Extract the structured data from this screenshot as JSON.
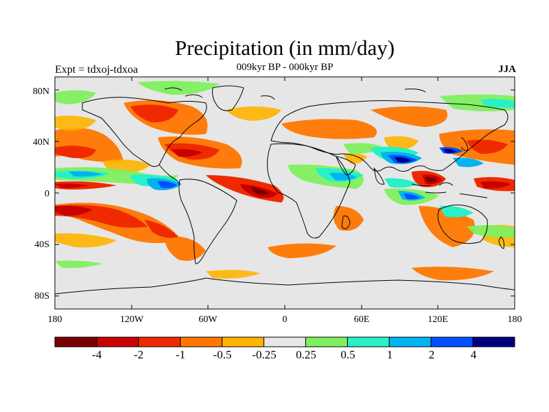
{
  "title": "Precipitation (in mm/day)",
  "subtitle": "009kyr BP - 000kyr BP",
  "left_label": "Expt = tdxoj-tdxoa",
  "season": "JJA",
  "lat_ticks": [
    "80N",
    "40N",
    "0",
    "40S",
    "80S"
  ],
  "lon_ticks": [
    "180",
    "120W",
    "60W",
    "0",
    "60E",
    "120E",
    "180"
  ],
  "colorbar": {
    "colors": [
      "#7a0000",
      "#c80000",
      "#f02a00",
      "#ff7700",
      "#ffb400",
      "#e6e6e6",
      "#80f060",
      "#28f0c8",
      "#00b4f0",
      "#0050ff",
      "#000080"
    ],
    "labels": [
      "-4",
      "-2",
      "-1",
      "-0.5",
      "-0.25",
      "0.25",
      "0.5",
      "1",
      "2",
      "4"
    ]
  }
}
